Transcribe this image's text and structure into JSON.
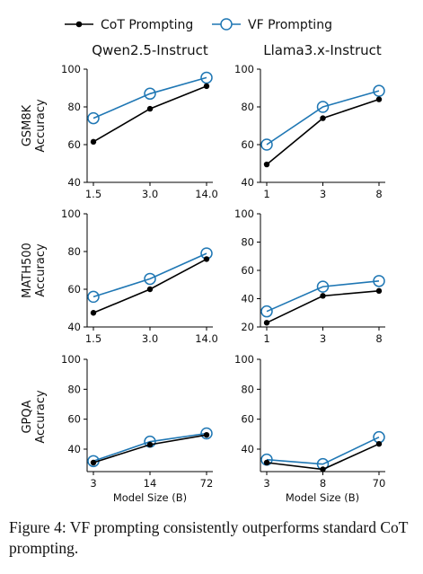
{
  "legend": [
    {
      "label": "CoT Prompting",
      "color": "#000000",
      "marker": "filled-dot"
    },
    {
      "label": "VF Prompting",
      "color": "#1f77b4",
      "marker": "hollow-circle"
    }
  ],
  "columns": [
    "Qwen2.5-Instruct",
    "Llama3.x-Instruct"
  ],
  "rows": [
    {
      "label_lines": [
        "GSM8K",
        "Accuracy"
      ]
    },
    {
      "label_lines": [
        "MATH500",
        "Accuracy"
      ]
    },
    {
      "label_lines": [
        "GPQA",
        "Accuracy"
      ]
    }
  ],
  "xlabel": "Model Size (B)",
  "caption": "Figure 4: VF prompting consistently outperforms standard CoT prompting.",
  "chart_data": [
    {
      "type": "line",
      "panel": "GSM8K / Qwen2.5-Instruct",
      "x": [
        1.5,
        3.0,
        14.0
      ],
      "x_tick_labels": [
        "1.5",
        "3.0",
        "14.0"
      ],
      "ylim": [
        40,
        100
      ],
      "yticks": [
        40,
        60,
        80,
        100
      ],
      "series": [
        {
          "name": "CoT Prompting",
          "values": [
            61.5,
            79,
            91
          ]
        },
        {
          "name": "VF Prompting",
          "values": [
            74,
            87,
            95.5
          ]
        }
      ]
    },
    {
      "type": "line",
      "panel": "GSM8K / Llama3.x-Instruct",
      "x": [
        1,
        3,
        8
      ],
      "x_tick_labels": [
        "1",
        "3",
        "8"
      ],
      "ylim": [
        40,
        100
      ],
      "yticks": [
        40,
        60,
        80,
        100
      ],
      "series": [
        {
          "name": "CoT Prompting",
          "values": [
            49.5,
            74,
            84
          ]
        },
        {
          "name": "VF Prompting",
          "values": [
            60,
            80,
            88.5
          ]
        }
      ]
    },
    {
      "type": "line",
      "panel": "MATH500 / Qwen2.5-Instruct",
      "x": [
        1.5,
        3.0,
        14.0
      ],
      "x_tick_labels": [
        "1.5",
        "3.0",
        "14.0"
      ],
      "ylim": [
        40,
        100
      ],
      "yticks": [
        40,
        60,
        80,
        100
      ],
      "series": [
        {
          "name": "CoT Prompting",
          "values": [
            47.5,
            60,
            76
          ]
        },
        {
          "name": "VF Prompting",
          "values": [
            56,
            65.5,
            79
          ]
        }
      ]
    },
    {
      "type": "line",
      "panel": "MATH500 / Llama3.x-Instruct",
      "x": [
        1,
        3,
        8
      ],
      "x_tick_labels": [
        "1",
        "3",
        "8"
      ],
      "ylim": [
        20,
        100
      ],
      "yticks": [
        20,
        40,
        60,
        80,
        100
      ],
      "series": [
        {
          "name": "CoT Prompting",
          "values": [
            23,
            42,
            45.5
          ]
        },
        {
          "name": "VF Prompting",
          "values": [
            31,
            48.5,
            52.5
          ]
        }
      ]
    },
    {
      "type": "line",
      "panel": "GPQA / Qwen2.5-Instruct",
      "x": [
        3,
        14,
        72
      ],
      "x_tick_labels": [
        "3",
        "14",
        "72"
      ],
      "ylim": [
        25,
        100
      ],
      "yticks": [
        40,
        60,
        80,
        100
      ],
      "series": [
        {
          "name": "CoT Prompting",
          "values": [
            31,
            43,
            49.5
          ]
        },
        {
          "name": "VF Prompting",
          "values": [
            32,
            45,
            50.5
          ]
        }
      ]
    },
    {
      "type": "line",
      "panel": "GPQA / Llama3.x-Instruct",
      "x": [
        3,
        8,
        70
      ],
      "x_tick_labels": [
        "3",
        "8",
        "70"
      ],
      "ylim": [
        25,
        100
      ],
      "yticks": [
        40,
        60,
        80,
        100
      ],
      "series": [
        {
          "name": "CoT Prompting",
          "values": [
            31,
            26.5,
            43.5
          ]
        },
        {
          "name": "VF Prompting",
          "values": [
            33,
            30,
            48
          ]
        }
      ]
    }
  ]
}
